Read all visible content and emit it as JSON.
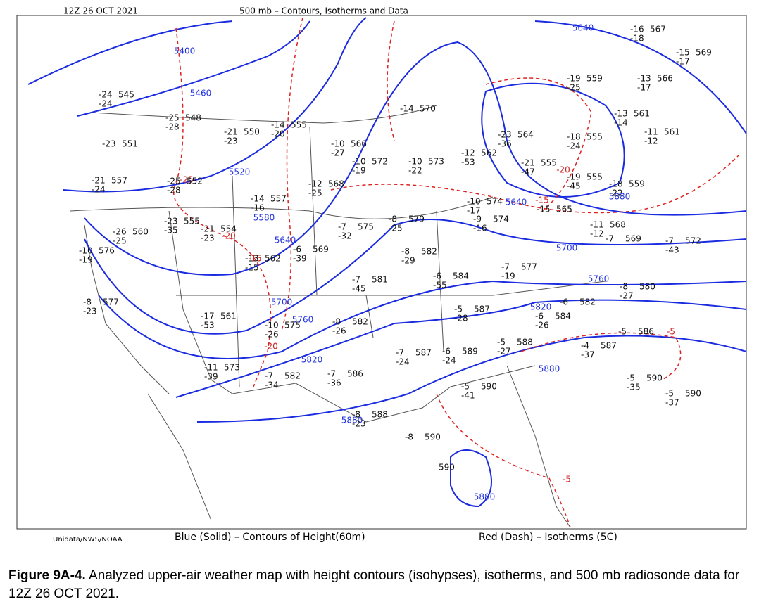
{
  "header": {
    "time": "12Z 26 OCT 2021",
    "title": "500 mb – Contours, Isotherms and Data"
  },
  "footer": {
    "source": "Unidata/NWS/NOAA",
    "blue": "Blue (Solid) – Contours of Height(60m)",
    "red": "Red (Dash) – Isotherms (5C)"
  },
  "caption": {
    "label": "Figure 9A-4.",
    "text": "Analyzed upper-air weather map with height contours (isohypses), isotherms, and 500 mb radiosonde data for 12Z 26 OCT 2021."
  },
  "height_labels": [
    5400,
    5460,
    5520,
    5580,
    5640,
    5700,
    5760,
    5820,
    5880,
    5640,
    5640,
    5700,
    5760,
    5820,
    5880,
    5880,
    5880
  ],
  "isotherm_labels": [
    -25,
    -20,
    -15,
    -20,
    -15,
    -20,
    -5,
    -5
  ],
  "stations": [
    {
      "temp": -24,
      "dew": -24,
      "height": 545
    },
    {
      "temp": -25,
      "dew": -28,
      "height": 548
    },
    {
      "temp": -23,
      "height": 551
    },
    {
      "temp": -21,
      "dew": -23,
      "height": 550
    },
    {
      "temp": -14,
      "dew": -20,
      "height": 555
    },
    {
      "temp": -10,
      "dew": -27,
      "height": 566
    },
    {
      "temp": -14,
      "height": 570
    },
    {
      "temp": -21,
      "dew": -24,
      "height": 557
    },
    {
      "temp": -25,
      "dew": -28,
      "height": 552
    },
    {
      "temp": -12,
      "dew": -25,
      "height": 568
    },
    {
      "temp": -10,
      "dew": -19,
      "height": 572
    },
    {
      "temp": -10,
      "dew": -22,
      "height": 573
    },
    {
      "temp": -12,
      "dew": -53,
      "height": 562
    },
    {
      "temp": -23,
      "dew": -36,
      "height": 564
    },
    {
      "temp": -19,
      "dew": -25,
      "height": 559
    },
    {
      "temp": -16,
      "dew": -18,
      "height": 567
    },
    {
      "temp": -15,
      "dew": -17,
      "height": 569
    },
    {
      "temp": -13,
      "dew": -17,
      "height": 566
    },
    {
      "temp": -13,
      "dew": -14,
      "height": 561
    },
    {
      "temp": -11,
      "dew": -12,
      "height": 561
    },
    {
      "temp": -18,
      "dew": -24,
      "height": 555
    },
    {
      "temp": -21,
      "dew": -47,
      "height": 555
    },
    {
      "temp": -19,
      "dew": -45,
      "height": 555
    },
    {
      "temp": -18,
      "dew": -22,
      "height": 559
    },
    {
      "temp": -23,
      "dew": -35,
      "height": 555
    },
    {
      "temp": -26,
      "dew": -25,
      "height": 560
    },
    {
      "temp": -10,
      "dew": -19,
      "height": 576
    },
    {
      "temp": -21,
      "dew": -23,
      "height": 554
    },
    {
      "temp": -14,
      "dew": -16,
      "height": 557
    },
    {
      "temp": -13,
      "dew": -15,
      "height": 562
    },
    {
      "temp": -6,
      "dew": -39,
      "height": 569
    },
    {
      "temp": -7,
      "dew": -32,
      "height": 575
    },
    {
      "temp": -8,
      "dew": -25,
      "height": 579
    },
    {
      "temp": -10,
      "dew": -17,
      "height": 574
    },
    {
      "temp": -9,
      "dew": -16,
      "height": 574
    },
    {
      "temp": -15,
      "height": 565
    },
    {
      "temp": -11,
      "dew": -12,
      "height": 568
    },
    {
      "temp": -7,
      "height": 569
    },
    {
      "temp": -7,
      "dew": -43,
      "height": 572
    },
    {
      "temp": -8,
      "dew": -29,
      "height": 582
    },
    {
      "temp": -6,
      "dew": -55,
      "height": 584
    },
    {
      "temp": -7,
      "dew": -45,
      "height": 581
    },
    {
      "temp": -7,
      "dew": -19,
      "height": 577
    },
    {
      "temp": -8,
      "dew": -27,
      "height": 580
    },
    {
      "temp": -8,
      "dew": -23,
      "height": 577
    },
    {
      "temp": -17,
      "dew": -53,
      "height": 561
    },
    {
      "temp": -10,
      "dew": -26,
      "height": 575
    },
    {
      "temp": -8,
      "dew": -26,
      "height": 582
    },
    {
      "temp": -5,
      "dew": -28,
      "height": 587
    },
    {
      "temp": -6,
      "dew": -26,
      "height": 584
    },
    {
      "temp": -6,
      "height": 582
    },
    {
      "temp": -5,
      "height": 586
    },
    {
      "temp": -4,
      "dew": -37,
      "height": 587
    },
    {
      "temp": -11,
      "dew": -39,
      "height": 573
    },
    {
      "temp": -7,
      "dew": -34,
      "height": 582
    },
    {
      "temp": -7,
      "dew": -36,
      "height": 586
    },
    {
      "temp": -7,
      "dew": -24,
      "height": 587
    },
    {
      "temp": -6,
      "dew": -24,
      "height": 589
    },
    {
      "temp": -5,
      "dew": -27,
      "height": 588
    },
    {
      "temp": -5,
      "dew": -41,
      "height": 590
    },
    {
      "temp": -5,
      "dew": -35,
      "height": 590
    },
    {
      "temp": -5,
      "dew": -37,
      "height": 590
    },
    {
      "temp": -8,
      "dew": -23,
      "height": 588
    },
    {
      "temp": -8,
      "height": 590
    },
    {
      "height": 590
    }
  ]
}
